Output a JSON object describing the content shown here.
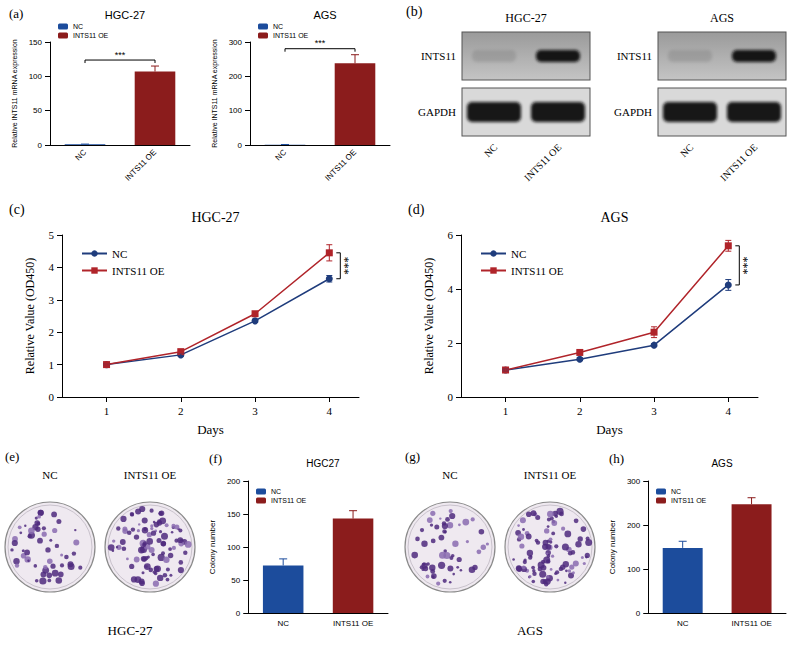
{
  "chart_data": [
    {
      "panel": "(a)",
      "type": "bar",
      "title": "HGC-27",
      "categories": [
        "NC",
        "INTS11 OE"
      ],
      "series": [
        {
          "name": "NC",
          "color": "#1c4c9c",
          "values": [
            1,
            null
          ],
          "errors": [
            0.3,
            null
          ]
        },
        {
          "name": "INTS11 OE",
          "color": "#8b1c1c",
          "values": [
            null,
            107
          ],
          "errors": [
            null,
            8
          ]
        }
      ],
      "ylabel": "Relative INTS11 mRNA expression",
      "ylim": [
        0,
        150
      ],
      "yticks": [
        0,
        50,
        100,
        150
      ],
      "legend": "top-left",
      "grid": false,
      "annotations": [
        "***"
      ]
    },
    {
      "type": "bar",
      "title": "AGS",
      "categories": [
        "NC",
        "INTS11 OE"
      ],
      "series": [
        {
          "name": "NC",
          "color": "#1c4c9c",
          "values": [
            1,
            null
          ],
          "errors": [
            0.5,
            null
          ]
        },
        {
          "name": "INTS11 OE",
          "color": "#8b1c1c",
          "values": [
            null,
            238
          ],
          "errors": [
            null,
            25
          ]
        }
      ],
      "ylabel": "Relative INTS11 mRNA expression",
      "ylim": [
        0,
        300
      ],
      "yticks": [
        0,
        100,
        200,
        300
      ],
      "legend": "top-left",
      "grid": false,
      "annotations": [
        "***"
      ]
    },
    {
      "panel": "(c)",
      "type": "line",
      "title": "HGC-27",
      "x": [
        1,
        2,
        3,
        4
      ],
      "xlabel": "Days",
      "ylabel": "Relative Value (OD450)",
      "xlim": [
        0.4,
        4.4
      ],
      "xticks": [
        1,
        2,
        3,
        4
      ],
      "ylim": [
        0,
        5
      ],
      "yticks": [
        0,
        1,
        2,
        3,
        4,
        5
      ],
      "legend": "top-left",
      "grid": false,
      "series": [
        {
          "name": "NC",
          "color": "#1f3c7c",
          "marker": "circle",
          "line_style": "solid",
          "values": [
            1,
            1.3,
            2.35,
            3.65
          ],
          "errors": [
            0.03,
            0.04,
            0.05,
            0.1
          ]
        },
        {
          "name": "INTS11 OE",
          "color": "#b0242a",
          "marker": "square",
          "line_style": "solid",
          "values": [
            1,
            1.4,
            2.57,
            4.45
          ],
          "errors": [
            0.03,
            0.05,
            0.06,
            0.25
          ]
        }
      ],
      "annotations": [
        "***"
      ]
    },
    {
      "panel": "(d)",
      "type": "line",
      "title": "AGS",
      "x": [
        1,
        2,
        3,
        4
      ],
      "xlabel": "Days",
      "ylabel": "Relative Value (OD450)",
      "xlim": [
        0.4,
        4.4
      ],
      "xticks": [
        1,
        2,
        3,
        4
      ],
      "ylim": [
        0,
        6
      ],
      "yticks": [
        0,
        2,
        4,
        6
      ],
      "legend": "top-left",
      "grid": false,
      "series": [
        {
          "name": "NC",
          "color": "#1f3c7c",
          "marker": "circle",
          "line_style": "solid",
          "values": [
            1,
            1.4,
            1.92,
            4.15
          ],
          "errors": [
            0.03,
            0.05,
            0.05,
            0.2
          ]
        },
        {
          "name": "INTS11 OE",
          "color": "#b0242a",
          "marker": "square",
          "line_style": "solid",
          "values": [
            1,
            1.65,
            2.4,
            5.6
          ],
          "errors": [
            0.03,
            0.05,
            0.2,
            0.2
          ]
        }
      ],
      "annotations": [
        "***"
      ]
    },
    {
      "panel": "(f)",
      "type": "bar",
      "title": "HGC27",
      "categories": [
        "NC",
        "INTS11 OE"
      ],
      "series": [
        {
          "name": "NC",
          "color": "#1c4c9c",
          "values": [
            72,
            null
          ],
          "errors": [
            10,
            null
          ]
        },
        {
          "name": "INTS11 OE",
          "color": "#8b1c1c",
          "values": [
            null,
            143
          ],
          "errors": [
            null,
            12
          ]
        }
      ],
      "ylabel": "Colony number",
      "ylim": [
        0,
        200
      ],
      "yticks": [
        0,
        50,
        100,
        150,
        200
      ],
      "legend": "top-left",
      "grid": false
    },
    {
      "panel": "(h)",
      "type": "bar",
      "title": "AGS",
      "categories": [
        "NC",
        "INTS11 OE"
      ],
      "series": [
        {
          "name": "NC",
          "color": "#1c4c9c",
          "values": [
            148,
            null
          ],
          "errors": [
            15,
            null
          ]
        },
        {
          "name": "INTS11 OE",
          "color": "#8b1c1c",
          "values": [
            null,
            247
          ],
          "errors": [
            null,
            15
          ]
        }
      ],
      "ylabel": "Colony number",
      "ylim": [
        0,
        300
      ],
      "yticks": [
        0,
        100,
        200,
        300
      ],
      "legend": "top-left",
      "grid": false
    }
  ],
  "blots": {
    "panel": "(b)",
    "groups": [
      "HGC-27",
      "AGS"
    ],
    "rows": [
      "INTS11",
      "GAPDH"
    ],
    "lanes": [
      "NC",
      "INTS11 OE"
    ]
  },
  "colonies": [
    {
      "panel": "(e)",
      "caption": "HGC-27",
      "lanes": [
        "NC",
        "INTS11 OE"
      ]
    },
    {
      "panel": "(g)",
      "caption": "AGS",
      "lanes": [
        "NC",
        "INTS11 OE"
      ]
    }
  ]
}
